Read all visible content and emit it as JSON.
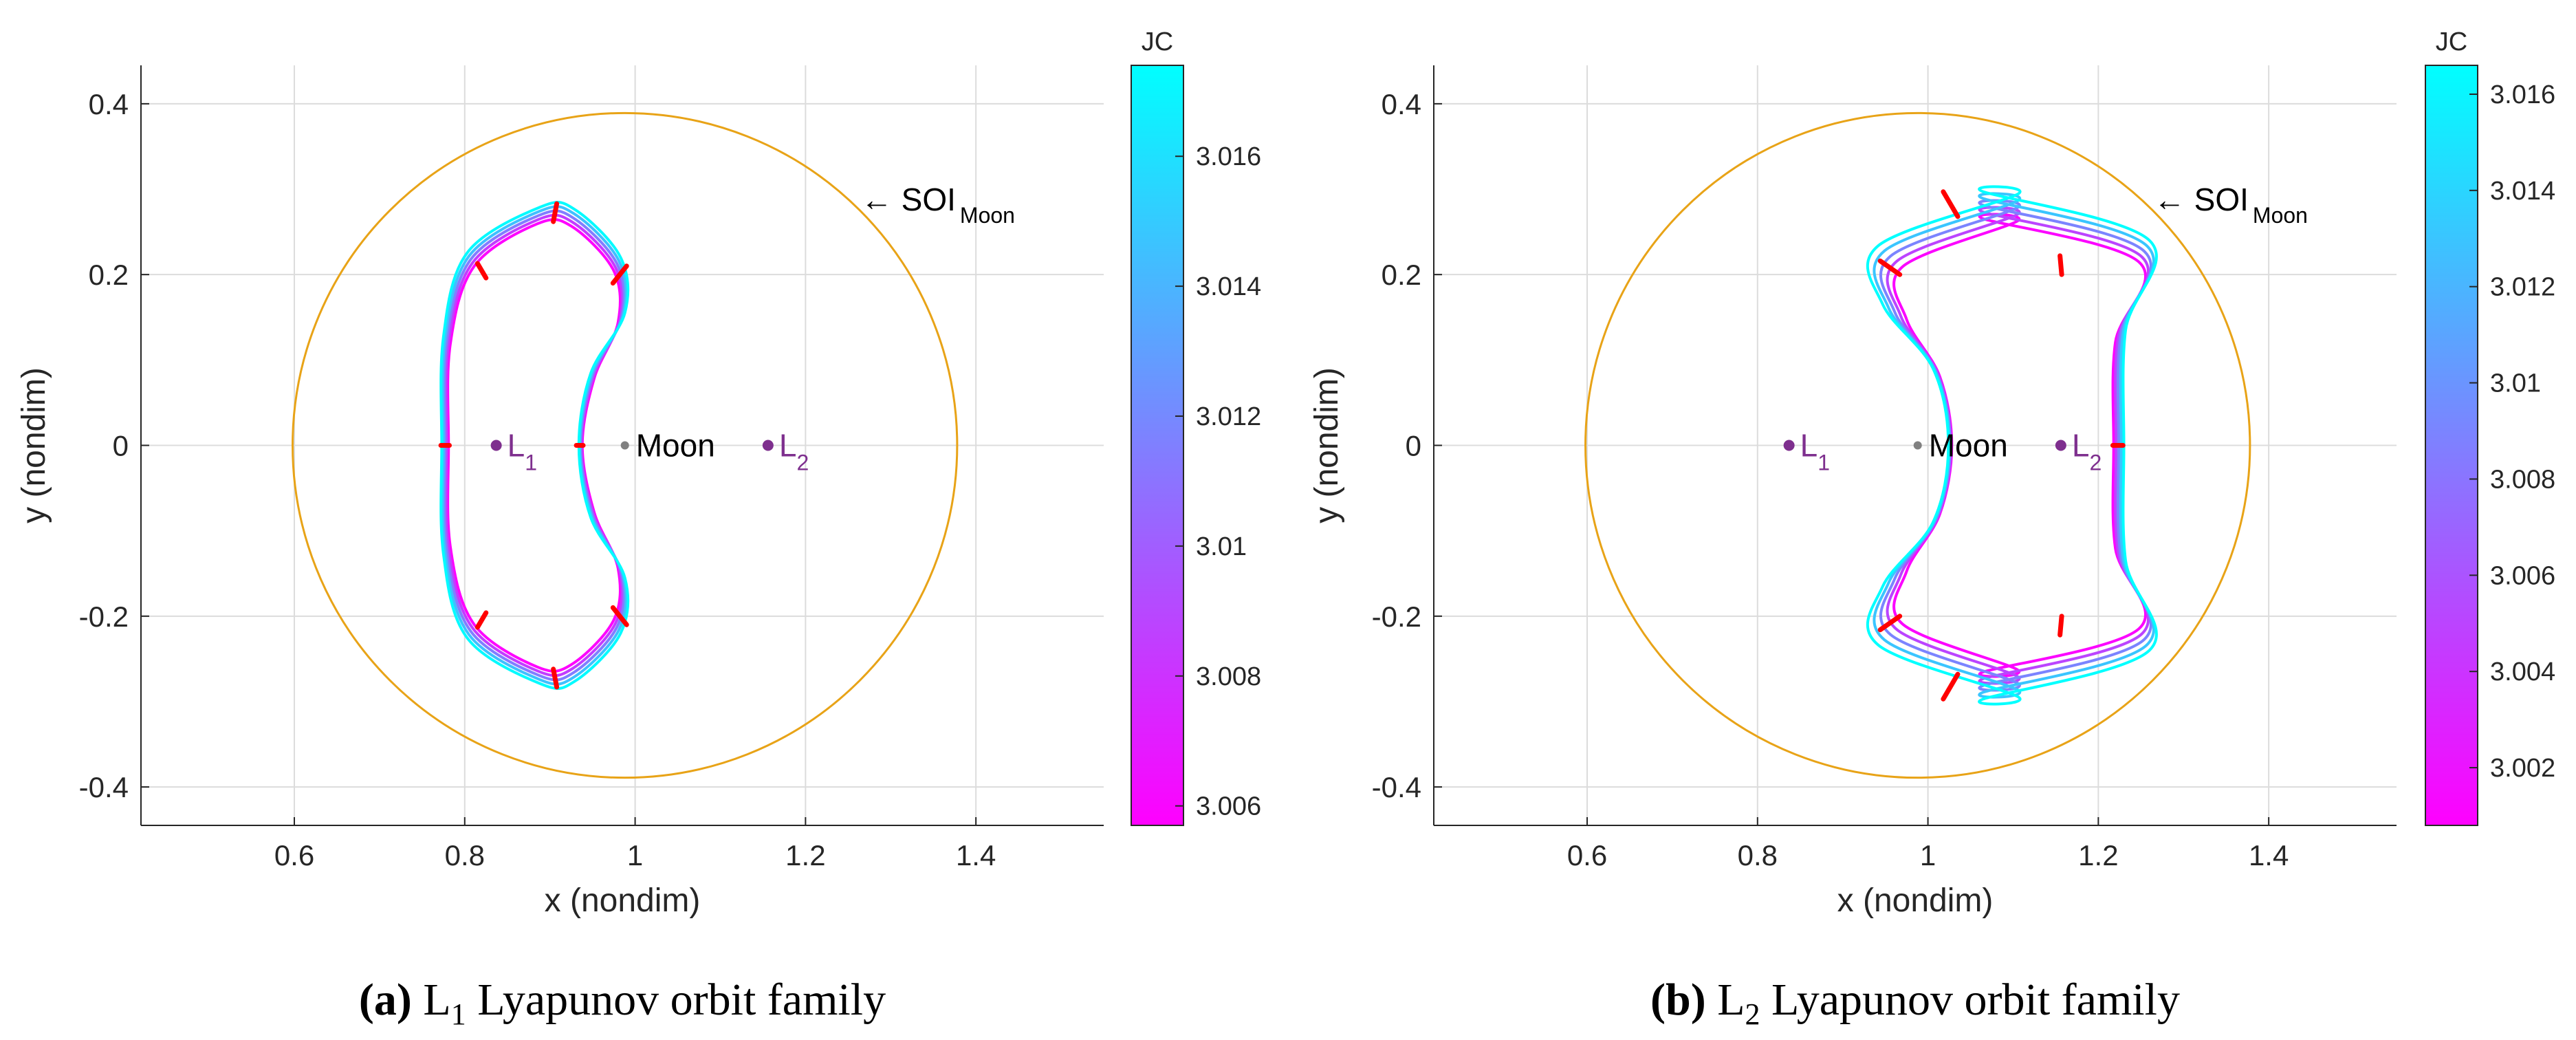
{
  "colors": {
    "soi": "#E8A317",
    "marker": "#FF0000",
    "lagrange": "#7E2F8E",
    "moon": "#808080",
    "cmap_low": "#FF00FF",
    "cmap_high": "#00FFFF",
    "grid": "#DCDCDC",
    "axis": "#262626"
  },
  "chart_data": [
    {
      "type": "line",
      "caption_label": "(a)",
      "caption_l": "L",
      "caption_sub": "1",
      "caption_rest": " Lyapunov orbit family",
      "xlabel": "x (nondim)",
      "ylabel": "y (nondim)",
      "xlim": [
        0.42,
        1.55
      ],
      "ylim": [
        -0.445,
        0.445
      ],
      "xticks": [
        0.6,
        0.8,
        1,
        1.2,
        1.4
      ],
      "xtick_labels": [
        "0.6",
        "0.8",
        "1",
        "1.2",
        "1.4"
      ],
      "yticks": [
        -0.4,
        -0.2,
        0,
        0.2,
        0.4
      ],
      "ytick_labels": [
        "-0.4",
        "-0.2",
        "0",
        "0.2",
        "0.4"
      ],
      "grid": true,
      "soi": {
        "center_x": 0.988,
        "radius": 0.39,
        "label": "SOI",
        "label_sub": "Moon",
        "label_arrow": "←",
        "label_x": 1.265,
        "label_y": 0.275
      },
      "moon": {
        "x": 0.988,
        "y": 0,
        "label": "Moon"
      },
      "lagrange_points": [
        {
          "x": 0.837,
          "y": 0,
          "label": "L",
          "sub": "1"
        },
        {
          "x": 1.156,
          "y": 0,
          "label": "L",
          "sub": "2"
        }
      ],
      "orbits": [
        {
          "jc": 3.0057,
          "x_outer": 0.781,
          "x_inner": 0.938,
          "x_waist": 0.948,
          "cx": 0.905,
          "y_max": 0.262,
          "x_lobe": 0.98
        },
        {
          "jc": 3.0085,
          "x_outer": 0.779,
          "x_inner": 0.937,
          "x_waist": 0.947,
          "cx": 0.906,
          "y_max": 0.267,
          "x_lobe": 0.982
        },
        {
          "jc": 3.0115,
          "x_outer": 0.777,
          "x_inner": 0.936,
          "x_waist": 0.946,
          "cx": 0.907,
          "y_max": 0.272,
          "x_lobe": 0.984
        },
        {
          "jc": 3.0145,
          "x_outer": 0.775,
          "x_inner": 0.935,
          "x_waist": 0.945,
          "cx": 0.908,
          "y_max": 0.277,
          "x_lobe": 0.986
        },
        {
          "jc": 3.0172,
          "x_outer": 0.773,
          "x_inner": 0.934,
          "x_waist": 0.944,
          "cx": 0.909,
          "y_max": 0.282,
          "x_lobe": 0.988
        }
      ],
      "markers": [
        {
          "x1": 0.772,
          "y1": 0,
          "x2": 0.782,
          "y2": 0
        },
        {
          "x1": 0.931,
          "y1": 0,
          "x2": 0.939,
          "y2": 0
        },
        {
          "x1": 0.815,
          "y1": 0.213,
          "x2": 0.825,
          "y2": 0.196
        },
        {
          "x1": 0.815,
          "y1": -0.213,
          "x2": 0.825,
          "y2": -0.196
        },
        {
          "x1": 0.908,
          "y1": 0.283,
          "x2": 0.904,
          "y2": 0.262
        },
        {
          "x1": 0.908,
          "y1": -0.283,
          "x2": 0.904,
          "y2": -0.262
        },
        {
          "x1": 0.99,
          "y1": 0.21,
          "x2": 0.974,
          "y2": 0.19
        },
        {
          "x1": 0.99,
          "y1": -0.21,
          "x2": 0.974,
          "y2": -0.19
        }
      ],
      "colorbar": {
        "title": "JC",
        "min": 3.0057,
        "max": 3.0174,
        "ticks": [
          3.006,
          3.008,
          3.01,
          3.012,
          3.014,
          3.016
        ],
        "tick_labels": [
          "3.006",
          "3.008",
          "3.01",
          "3.012",
          "3.014",
          "3.016"
        ]
      }
    },
    {
      "type": "line",
      "caption_label": "(b)",
      "caption_l": "L",
      "caption_sub": "2",
      "caption_rest": " Lyapunov orbit family",
      "xlabel": "x (nondim)",
      "ylabel": "y (nondim)",
      "xlim": [
        0.42,
        1.55
      ],
      "ylim": [
        -0.445,
        0.445
      ],
      "xticks": [
        0.6,
        0.8,
        1,
        1.2,
        1.4
      ],
      "xtick_labels": [
        "0.6",
        "0.8",
        "1",
        "1.2",
        "1.4"
      ],
      "yticks": [
        -0.4,
        -0.2,
        0,
        0.2,
        0.4
      ],
      "ytick_labels": [
        "-0.4",
        "-0.2",
        "0",
        "0.2",
        "0.4"
      ],
      "grid": true,
      "soi": {
        "center_x": 0.988,
        "radius": 0.39,
        "label": "SOI",
        "label_sub": "Moon",
        "label_arrow": "←",
        "label_x": 1.265,
        "label_y": 0.275
      },
      "moon": {
        "x": 0.988,
        "y": 0,
        "label": "Moon"
      },
      "lagrange_points": [
        {
          "x": 0.837,
          "y": 0,
          "label": "L",
          "sub": "1"
        },
        {
          "x": 1.156,
          "y": 0,
          "label": "L",
          "sub": "2"
        }
      ],
      "orbits": [
        {
          "jc": 3.001,
          "x_outer": 1.218,
          "x_inner": 1.028,
          "x_waist": 1.01,
          "cx": 1.085,
          "y_max": 0.268,
          "x_lobe": 0.975
        },
        {
          "jc": 3.005,
          "x_outer": 1.221,
          "x_inner": 1.027,
          "x_waist": 1.008,
          "cx": 1.085,
          "y_max": 0.276,
          "x_lobe": 0.968
        },
        {
          "jc": 3.009,
          "x_outer": 1.224,
          "x_inner": 1.026,
          "x_waist": 1.006,
          "cx": 1.085,
          "y_max": 0.284,
          "x_lobe": 0.961
        },
        {
          "jc": 3.013,
          "x_outer": 1.227,
          "x_inner": 1.025,
          "x_waist": 1.004,
          "cx": 1.085,
          "y_max": 0.292,
          "x_lobe": 0.954
        },
        {
          "jc": 3.0166,
          "x_outer": 1.23,
          "x_inner": 1.024,
          "x_waist": 1.002,
          "cx": 1.085,
          "y_max": 0.3,
          "x_lobe": 0.947
        }
      ],
      "markers": [
        {
          "x1": 1.217,
          "y1": 0,
          "x2": 1.229,
          "y2": 0
        },
        {
          "x1": 1.018,
          "y1": 0.297,
          "x2": 1.035,
          "y2": 0.268
        },
        {
          "x1": 1.018,
          "y1": -0.297,
          "x2": 1.035,
          "y2": -0.268
        },
        {
          "x1": 1.155,
          "y1": 0.222,
          "x2": 1.157,
          "y2": 0.2
        },
        {
          "x1": 1.155,
          "y1": -0.222,
          "x2": 1.157,
          "y2": -0.2
        },
        {
          "x1": 0.944,
          "y1": 0.216,
          "x2": 0.967,
          "y2": 0.2
        },
        {
          "x1": 0.944,
          "y1": -0.216,
          "x2": 0.967,
          "y2": -0.2
        }
      ],
      "colorbar": {
        "title": "JC",
        "min": 3.0008,
        "max": 3.0166,
        "ticks": [
          3.002,
          3.004,
          3.006,
          3.008,
          3.01,
          3.012,
          3.014,
          3.016
        ],
        "tick_labels": [
          "3.002",
          "3.004",
          "3.006",
          "3.008",
          "3.01",
          "3.012",
          "3.014",
          "3.016"
        ]
      }
    }
  ]
}
